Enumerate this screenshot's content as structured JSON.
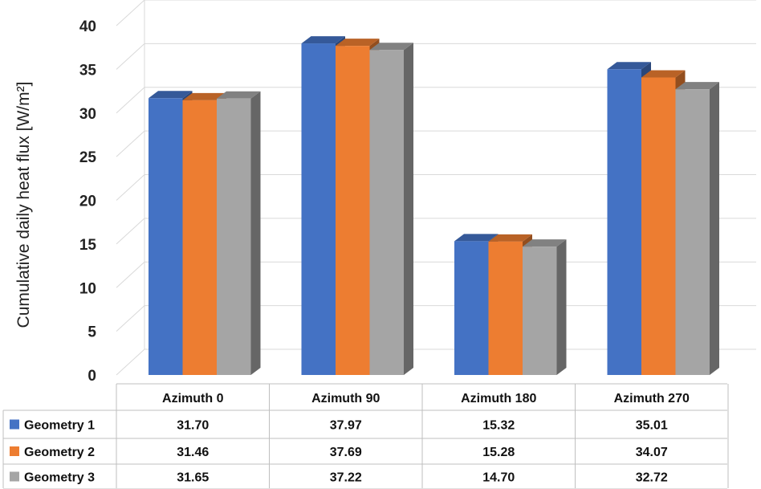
{
  "chart_data": {
    "type": "bar",
    "ylabel": "Cumulative daily heat flux [W/m²]",
    "ylim": [
      0,
      40
    ],
    "yticks": [
      0,
      5,
      10,
      15,
      20,
      25,
      30,
      35,
      40
    ],
    "grid": true,
    "categories": [
      "Azimuth 0",
      "Azimuth 90",
      "Azimuth 180",
      "Azimuth 270"
    ],
    "series": [
      {
        "name": "Geometry 1",
        "color": "#4472C4",
        "values": [
          31.7,
          37.97,
          15.32,
          35.01
        ],
        "labels": [
          "31.70",
          "37.97",
          "15.32",
          "35.01"
        ]
      },
      {
        "name": "Geometry 2",
        "color": "#ED7D31",
        "values": [
          31.46,
          37.69,
          15.28,
          34.07
        ],
        "labels": [
          "31.46",
          "37.69",
          "15.28",
          "34.07"
        ]
      },
      {
        "name": "Geometry 3",
        "color": "#A5A5A5",
        "values": [
          31.65,
          37.22,
          14.7,
          32.72
        ],
        "labels": [
          "31.65",
          "37.22",
          "14.70",
          "32.72"
        ]
      }
    ],
    "legend": "data-table"
  }
}
